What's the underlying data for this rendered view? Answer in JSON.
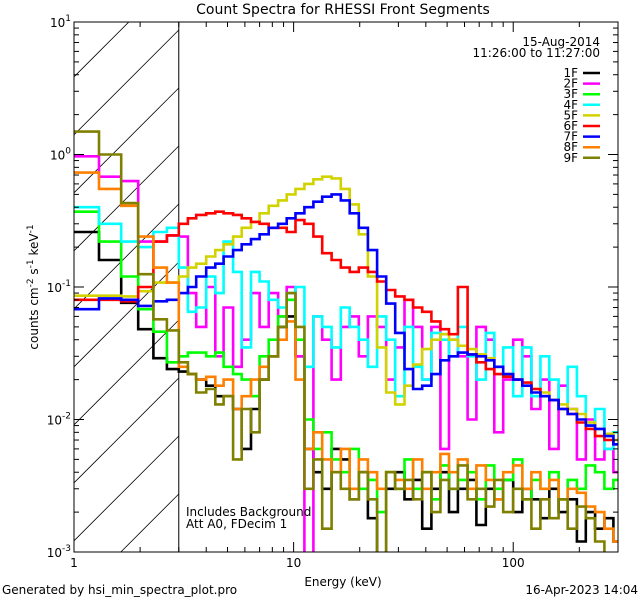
{
  "chart_data": {
    "type": "line",
    "title": "Count Spectra for RHESSI Front Segments",
    "xlabel": "Energy (keV)",
    "ylabel": "counts cm-2 s-1 keV-1",
    "ylabel_parts": [
      "counts cm",
      "-2",
      " s",
      "-1",
      " keV",
      "-1"
    ],
    "xscale": "log",
    "yscale": "log",
    "xlim": [
      1,
      300
    ],
    "ylim": [
      0.001,
      10
    ],
    "x_ticks": [
      {
        "value": 1,
        "label": "1"
      },
      {
        "value": 10,
        "label": "10"
      },
      {
        "value": 100,
        "label": "100"
      }
    ],
    "y_ticks": [
      {
        "value": 10,
        "base": "10",
        "exp": "1"
      },
      {
        "value": 1,
        "base": "10",
        "exp": "0"
      },
      {
        "value": 0.1,
        "base": "10",
        "exp": "-1"
      },
      {
        "value": 0.01,
        "base": "10",
        "exp": "-2"
      },
      {
        "value": 0.001,
        "base": "10",
        "exp": "-3"
      }
    ],
    "grid": false,
    "shaded_region": {
      "from": 1,
      "to": 3,
      "style": "hatched"
    },
    "legend_placement": "top-right",
    "legend_header": [
      "15-Aug-2014",
      "11:26:00 to 11:27:00"
    ],
    "annotations": [
      "Includes Background",
      "Att A0, FDecim 1"
    ],
    "energy_bin_edges": [
      1,
      1.3,
      1.64,
      1.96,
      2.3,
      2.65,
      3,
      3.3,
      3.6,
      4,
      4.4,
      4.8,
      5.3,
      5.8,
      6.4,
      7,
      7.7,
      8.5,
      9.3,
      10.2,
      11.2,
      12.3,
      13.5,
      14.9,
      16.4,
      18,
      19.8,
      21.8,
      24,
      26.4,
      29,
      32,
      35,
      38.5,
      42.4,
      46.6,
      51,
      56,
      62,
      68,
      75,
      82,
      90,
      100,
      110,
      121,
      133,
      146,
      161,
      177,
      195,
      214,
      236,
      260,
      286,
      310
    ],
    "series": [
      {
        "name": "1F",
        "color": "#000000",
        "values": [
          0.26,
          0.16,
          0.076,
          0.048,
          0.029,
          0.024,
          0.023,
          0.022,
          0.02,
          0.018,
          0.015,
          0.015,
          0.012,
          0.006,
          0.012,
          0.02,
          0.03,
          0.05,
          0.06,
          0.03,
          0.006,
          0.004,
          0.003,
          0.006,
          0.005,
          0.0025,
          0.004,
          0.0018,
          0.0009,
          0.003,
          0.004,
          0.0025,
          0.0035,
          0.0015,
          0.003,
          0.004,
          0.002,
          0.003,
          0.0035,
          0.0016,
          0.003,
          0.0025,
          0.0035,
          0.002,
          0.003,
          0.0025,
          0.0018,
          0.003,
          0.002,
          0.0025,
          0.0012,
          0.002,
          0.0015,
          0.0018,
          0.0012
        ]
      },
      {
        "name": "2F",
        "color": "#ff00ff",
        "values": [
          0.97,
          0.68,
          0.63,
          0.22,
          0.22,
          0.245,
          0.24,
          0.09,
          0.05,
          0.1,
          0.03,
          0.07,
          0.025,
          0.04,
          0.09,
          0.05,
          0.09,
          0.06,
          0.1,
          0.03,
          0.0008,
          0.06,
          0.04,
          0.02,
          0.05,
          0.06,
          0.03,
          0.06,
          0.05,
          0.02,
          0.035,
          0.08,
          0.05,
          0.02,
          0.05,
          0.006,
          0.04,
          0.03,
          0.01,
          0.05,
          0.04,
          0.008,
          0.02,
          0.04,
          0.03,
          0.012,
          0.02,
          0.006,
          0.018,
          0.012,
          0.005,
          0.01,
          0.005,
          0.006,
          0.004
        ]
      },
      {
        "name": "3F",
        "color": "#00ff00",
        "values": [
          0.37,
          0.22,
          0.12,
          0.068,
          0.046,
          0.027,
          0.03,
          0.032,
          0.032,
          0.03,
          0.032,
          0.025,
          0.022,
          0.02,
          0.015,
          0.03,
          0.04,
          0.06,
          0.08,
          0.04,
          0.01,
          0.006,
          0.008,
          0.005,
          0.004,
          0.006,
          0.003,
          0.0035,
          0.002,
          0.004,
          0.003,
          0.005,
          0.003,
          0.004,
          0.0025,
          0.0045,
          0.003,
          0.0035,
          0.004,
          0.0025,
          0.0045,
          0.003,
          0.0035,
          0.005,
          0.0025,
          0.0035,
          0.003,
          0.004,
          0.0025,
          0.0035,
          0.003,
          0.0045,
          0.004,
          0.003,
          0.0035
        ]
      },
      {
        "name": "4F",
        "color": "#00ffff",
        "values": [
          0.4,
          0.3,
          0.22,
          0.2,
          0.26,
          0.28,
          0.14,
          0.065,
          0.07,
          0.12,
          0.09,
          0.22,
          0.13,
          0.035,
          0.13,
          0.11,
          0.08,
          0.07,
          0.09,
          0.1,
          0.025,
          0.06,
          0.05,
          0.035,
          0.07,
          0.05,
          0.04,
          0.025,
          0.06,
          0.04,
          0.015,
          0.05,
          0.025,
          0.02,
          0.045,
          0.04,
          0.03,
          0.05,
          0.03,
          0.02,
          0.045,
          0.025,
          0.035,
          0.015,
          0.035,
          0.015,
          0.03,
          0.02,
          0.012,
          0.025,
          0.015,
          0.009,
          0.012,
          0.006,
          0.008
        ]
      },
      {
        "name": "5F",
        "color": "#d2d200",
        "values": [
          0.086,
          0.086,
          0.085,
          0.093,
          0.108,
          0.108,
          0.12,
          0.14,
          0.15,
          0.17,
          0.19,
          0.21,
          0.24,
          0.28,
          0.31,
          0.36,
          0.41,
          0.45,
          0.5,
          0.55,
          0.6,
          0.65,
          0.68,
          0.66,
          0.55,
          0.42,
          0.25,
          0.12,
          0.035,
          0.016,
          0.013,
          0.018,
          0.026,
          0.034,
          0.04,
          0.044,
          0.04,
          0.036,
          0.034,
          0.031,
          0.029,
          0.025,
          0.022,
          0.02,
          0.018,
          0.017,
          0.016,
          0.014,
          0.013,
          0.012,
          0.011,
          0.0095,
          0.0085,
          0.0078,
          0.007
        ]
      },
      {
        "name": "6F",
        "color": "#ff0000",
        "values": [
          0.08,
          0.08,
          0.078,
          0.1,
          0.22,
          0.245,
          0.3,
          0.33,
          0.35,
          0.36,
          0.37,
          0.36,
          0.35,
          0.33,
          0.31,
          0.3,
          0.28,
          0.28,
          0.26,
          0.32,
          0.3,
          0.24,
          0.18,
          0.16,
          0.14,
          0.13,
          0.14,
          0.13,
          0.11,
          0.095,
          0.085,
          0.08,
          0.07,
          0.065,
          0.055,
          0.048,
          0.044,
          0.1,
          0.031,
          0.027,
          0.024,
          0.022,
          0.021,
          0.02,
          0.019,
          0.017,
          0.015,
          0.014,
          0.012,
          0.011,
          0.0095,
          0.0085,
          0.0075,
          0.007,
          0.0065
        ]
      },
      {
        "name": "7F",
        "color": "#0000ff",
        "values": [
          0.068,
          0.082,
          0.08,
          0.072,
          0.078,
          0.08,
          0.09,
          0.1,
          0.12,
          0.14,
          0.15,
          0.17,
          0.19,
          0.21,
          0.23,
          0.25,
          0.28,
          0.3,
          0.33,
          0.36,
          0.4,
          0.44,
          0.48,
          0.5,
          0.45,
          0.36,
          0.28,
          0.19,
          0.12,
          0.075,
          0.045,
          0.024,
          0.017,
          0.018,
          0.022,
          0.028,
          0.03,
          0.032,
          0.031,
          0.03,
          0.028,
          0.025,
          0.022,
          0.02,
          0.018,
          0.016,
          0.015,
          0.014,
          0.012,
          0.011,
          0.01,
          0.009,
          0.0085,
          0.0075,
          0.0065
        ]
      },
      {
        "name": "8F",
        "color": "#ff8000",
        "values": [
          0.73,
          0.55,
          0.41,
          0.24,
          0.14,
          0.108,
          0.025,
          0.022,
          0.02,
          0.021,
          0.018,
          0.02,
          0.012,
          0.015,
          0.02,
          0.025,
          0.03,
          0.04,
          0.055,
          0.02,
          0.006,
          0.008,
          0.005,
          0.004,
          0.006,
          0.003,
          0.005,
          0.004,
          0.003,
          0.004,
          0.0035,
          0.003,
          0.005,
          0.003,
          0.004,
          0.0055,
          0.004,
          0.005,
          0.003,
          0.0045,
          0.0035,
          0.0025,
          0.004,
          0.0045,
          0.003,
          0.004,
          0.003,
          0.0035,
          0.0025,
          0.003,
          0.0028,
          0.0022,
          0.002,
          0.0015,
          0.0012
        ]
      },
      {
        "name": "9F",
        "color": "#808000",
        "values": [
          1.49,
          1.0,
          0.43,
          0.125,
          0.057,
          0.047,
          0.027,
          0.022,
          0.016,
          0.017,
          0.013,
          0.015,
          0.005,
          0.012,
          0.008,
          0.02,
          0.03,
          0.05,
          0.09,
          0.05,
          0.003,
          0.005,
          0.0015,
          0.004,
          0.003,
          0.0025,
          0.004,
          0.0025,
          0.0008,
          0.004,
          0.003,
          0.0035,
          0.0025,
          0.004,
          0.002,
          0.0035,
          0.003,
          0.0045,
          0.0025,
          0.003,
          0.0022,
          0.0035,
          0.002,
          0.003,
          0.0025,
          0.0015,
          0.0025,
          0.0018,
          0.0025,
          0.0015,
          0.0022,
          0.0018,
          0.0012,
          0.0009,
          0.0007
        ]
      }
    ]
  },
  "footer": {
    "generated_by": "Generated by hsi_min_spectra_plot.pro",
    "timestamp": "16-Apr-2023 14:04"
  }
}
